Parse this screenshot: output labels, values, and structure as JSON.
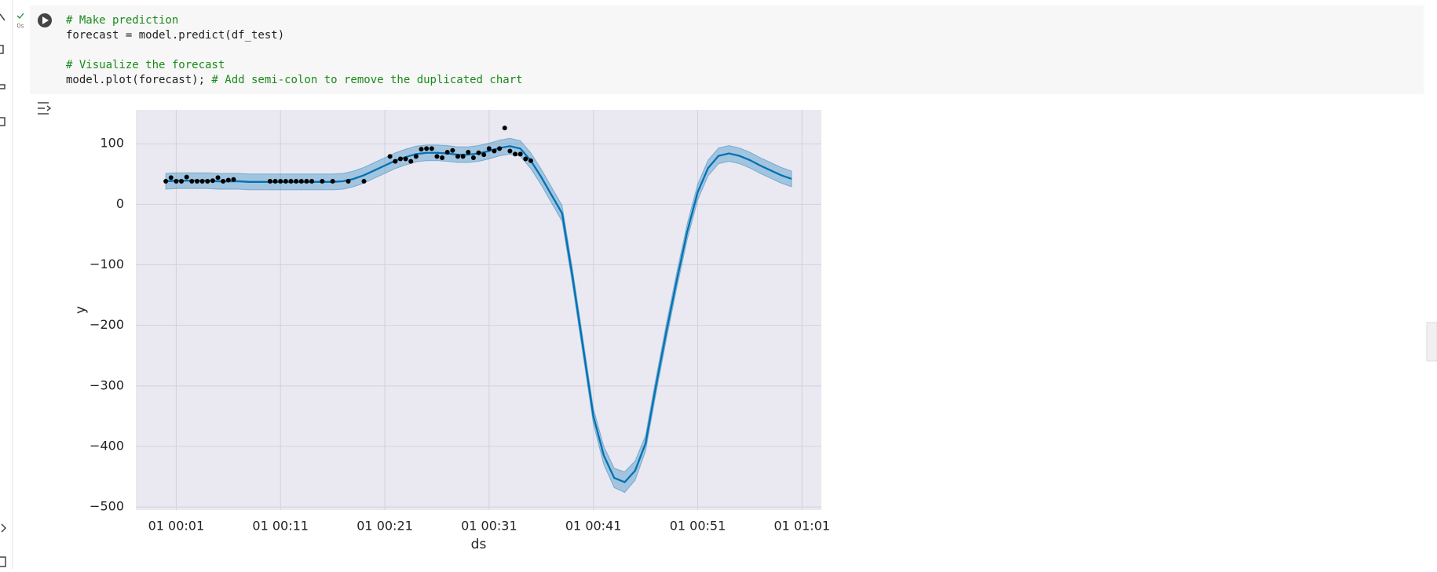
{
  "cell": {
    "status": "0s",
    "code": [
      [
        "# Make prediction"
      ],
      [
        "forecast = model.predict(df_test)"
      ],
      [
        "# Visualize the forecast"
      ],
      [
        "model.plot(forecast);",
        "# Add semi-colon to remove the duplicated chart"
      ]
    ]
  },
  "chart_data": {
    "type": "line",
    "xlabel": "ds",
    "ylabel": "y",
    "xlim": [
      -2.87,
      62.86
    ],
    "ylim": [
      -505,
      156
    ],
    "grid": true,
    "xticks": [
      {
        "value": 1,
        "label": "01 00:01"
      },
      {
        "value": 11,
        "label": "01 00:11"
      },
      {
        "value": 21,
        "label": "01 00:21"
      },
      {
        "value": 31,
        "label": "01 00:31"
      },
      {
        "value": 41,
        "label": "01 00:41"
      },
      {
        "value": 51,
        "label": "01 00:51"
      },
      {
        "value": 61,
        "label": "01 01:01"
      }
    ],
    "yticks": [
      {
        "value": -500,
        "label": "−500"
      },
      {
        "value": -400,
        "label": "−400"
      },
      {
        "value": -300,
        "label": "−300"
      },
      {
        "value": -200,
        "label": "−200"
      },
      {
        "value": -100,
        "label": "−100"
      },
      0,
      100
    ],
    "series": [
      {
        "color": "#0072b2",
        "x": [
          0,
          1,
          2,
          3,
          4,
          5,
          6,
          7,
          8,
          9,
          10,
          11,
          12,
          13,
          14,
          15,
          16,
          17,
          18,
          19,
          20,
          21,
          22,
          23,
          24,
          25,
          26,
          27,
          28,
          29,
          30,
          31,
          32,
          33,
          34,
          35,
          36,
          37,
          38,
          39,
          40,
          41,
          42,
          43,
          44,
          45,
          46,
          47,
          48,
          49,
          50,
          51,
          52,
          53,
          54,
          55,
          56,
          57,
          58,
          59,
          60
        ],
        "values": [
          38,
          39,
          39,
          39,
          39,
          38,
          38,
          38,
          37,
          37,
          37,
          37,
          37,
          37,
          37,
          37,
          37,
          38,
          42,
          48,
          56,
          64,
          72,
          78,
          83,
          85,
          85,
          84,
          82,
          82,
          84,
          88,
          93,
          96,
          92,
          72,
          45,
          15,
          -15,
          -120,
          -235,
          -350,
          -415,
          -452,
          -459,
          -440,
          -395,
          -300,
          -210,
          -125,
          -45,
          20,
          60,
          80,
          84,
          80,
          73,
          64,
          56,
          48,
          42
        ],
        "upper": [
          51,
          52,
          52,
          52,
          52,
          51,
          51,
          51,
          50,
          50,
          50,
          50,
          50,
          50,
          50,
          50,
          50,
          51,
          55,
          61,
          69,
          77,
          85,
          91,
          96,
          98,
          98,
          97,
          95,
          95,
          97,
          101,
          106,
          109,
          105,
          85,
          58,
          28,
          -2,
          -107,
          -222,
          -337,
          -400,
          -436,
          -442,
          -424,
          -382,
          -287,
          -197,
          -112,
          -32,
          33,
          73,
          93,
          97,
          93,
          86,
          77,
          69,
          61,
          55
        ],
        "lower": [
          25,
          26,
          26,
          26,
          26,
          25,
          25,
          25,
          24,
          24,
          24,
          24,
          24,
          24,
          24,
          24,
          24,
          25,
          29,
          35,
          43,
          51,
          59,
          65,
          70,
          72,
          72,
          71,
          69,
          69,
          71,
          75,
          80,
          83,
          79,
          59,
          32,
          2,
          -28,
          -133,
          -248,
          -363,
          -430,
          -468,
          -476,
          -456,
          -408,
          -313,
          -223,
          -138,
          -58,
          7,
          47,
          67,
          71,
          67,
          60,
          51,
          43,
          35,
          29
        ]
      }
    ],
    "scatter": {
      "color": "#000000",
      "x": [
        0,
        0.5,
        1,
        1.5,
        2,
        2.5,
        3,
        3.5,
        4,
        4.5,
        5,
        5.5,
        6,
        6.5,
        10,
        10.5,
        11,
        11.5,
        12,
        12.5,
        13,
        13.5,
        14,
        15,
        16,
        17.5,
        19,
        21.5,
        22,
        22.5,
        23,
        23.5,
        24,
        24.5,
        25,
        25.5,
        26,
        26.5,
        27,
        27.5,
        28,
        28.5,
        29,
        29.5,
        30,
        30.5,
        31,
        31.5,
        32,
        32.5,
        33,
        33.5,
        34,
        34.5,
        35
      ],
      "values": [
        38,
        44,
        38,
        38,
        45,
        38,
        38,
        38,
        38,
        39,
        44,
        38,
        40,
        41,
        38,
        38,
        38,
        38,
        38,
        38,
        38,
        38,
        38,
        38,
        38,
        38,
        38,
        79,
        71,
        75,
        75,
        71,
        79,
        91,
        92,
        92,
        79,
        77,
        86,
        89,
        79,
        79,
        86,
        77,
        85,
        82,
        92,
        88,
        92,
        126,
        88,
        83,
        83,
        75,
        72
      ]
    }
  }
}
